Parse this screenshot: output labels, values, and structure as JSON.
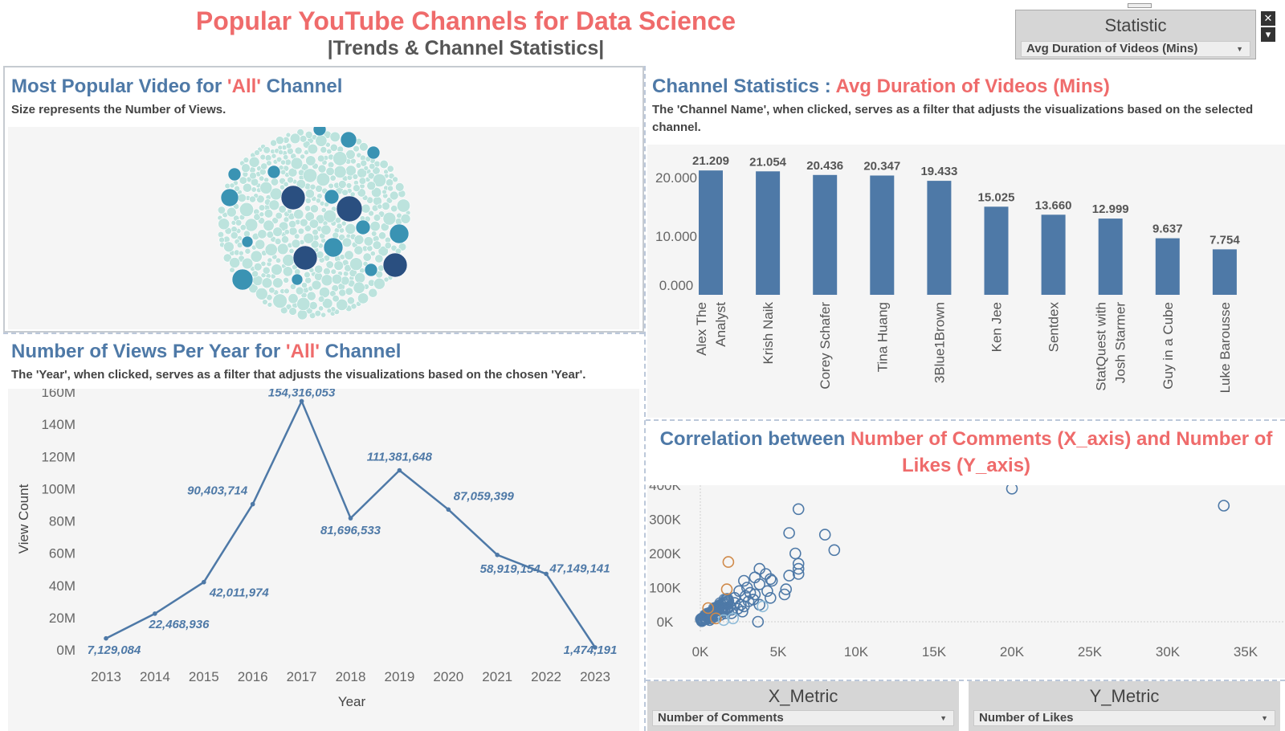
{
  "dashboard": {
    "title": "Popular YouTube Channels for Data Science",
    "subtitle": "|Trends & Channel Statistics|"
  },
  "statistic_filter": {
    "label": "Statistic",
    "selected": "Avg Duration of Videos (Mins)"
  },
  "bubble_panel": {
    "title_prefix": "Most Popular Video for ",
    "title_highlight": "'All'",
    "title_suffix": " Channel",
    "note": "Size represents the Number of Views."
  },
  "views_panel": {
    "title_prefix": "Number of Views Per Year for ",
    "title_highlight": "'All'",
    "title_suffix": " Channel",
    "note": "The 'Year', when clicked, serves as a filter that adjusts the visualizations based on the chosen 'Year'."
  },
  "channel_panel": {
    "title_prefix": "Channel Statistics : ",
    "title_highlight": "Avg Duration of Videos (Mins)",
    "note": "The 'Channel Name', when clicked, serves as a filter that adjusts the visualizations based on the selected channel."
  },
  "scatter_panel": {
    "title_prefix": "Correlation between ",
    "title_highlight_line1": "Number of Comments (X_axis) and Number of",
    "title_highlight_line2": "Likes (Y_axis)"
  },
  "x_metric": {
    "label": "X_Metric",
    "selected": "Number of Comments"
  },
  "y_metric": {
    "label": "Y_Metric",
    "selected": "Number of Likes"
  },
  "colors": {
    "title": "#ef6b6b",
    "accent": "#4e79a7",
    "bar": "#4e79a7",
    "line": "#4e79a7",
    "bubble_light": "#a8dcd4",
    "bubble_mid": "#3a93b3",
    "bubble_dark": "#2a4f80",
    "scatter_orange": "#d08a4a",
    "scatter_light": "#8ebbd8"
  },
  "chart_data": [
    {
      "id": "bubble",
      "type": "scatter",
      "title": "",
      "note": "packed bubble chart; size represents number of views"
    },
    {
      "id": "views_per_year",
      "type": "line",
      "x": [
        "2013",
        "2014",
        "2015",
        "2016",
        "2017",
        "2018",
        "2019",
        "2020",
        "2021",
        "2022",
        "2023"
      ],
      "values": [
        7129084,
        22468936,
        42011974,
        90403714,
        154316053,
        81696533,
        111381648,
        87059399,
        58919154,
        47149141,
        1474191
      ],
      "data_labels": [
        "7,129,084",
        "22,468,936",
        "42,011,974",
        "90,403,714",
        "154,316,053",
        "81,696,533",
        "111,381,648",
        "87,059,399",
        "58,919,154",
        "47,149,141",
        "1,474,191"
      ],
      "xlabel": "Year",
      "ylabel": "View Count",
      "yticks": [
        "0M",
        "20M",
        "40M",
        "60M",
        "80M",
        "100M",
        "120M",
        "140M",
        "160M"
      ],
      "ylim": [
        0,
        160000000
      ],
      "grid": false
    },
    {
      "id": "channel_stats",
      "type": "bar",
      "categories": [
        "Alex The Analyst",
        "Krish Naik",
        "Corey Schafer",
        "Tina Huang",
        "3Blue1Brown",
        "Ken Jee",
        "Sentdex",
        "StatQuest with Josh Starmer",
        "Guy in a Cube",
        "Luke Barousse"
      ],
      "category_lines": [
        [
          "Alex The",
          "Analyst"
        ],
        [
          "Krish Naik"
        ],
        [
          "Corey Schafer"
        ],
        [
          "Tina Huang"
        ],
        [
          "3Blue1Brown"
        ],
        [
          "Ken Jee"
        ],
        [
          "Sentdex"
        ],
        [
          "StatQuest with",
          "Josh Starmer"
        ],
        [
          "Guy in a Cube"
        ],
        [
          "Luke Barousse"
        ]
      ],
      "values": [
        21.209,
        21.054,
        20.436,
        20.347,
        19.433,
        15.025,
        13.66,
        12.999,
        9.637,
        7.754
      ],
      "data_labels": [
        "21.209",
        "21.054",
        "20.436",
        "20.347",
        "19.433",
        "15.025",
        "13.660",
        "12.999",
        "9.637",
        "7.754"
      ],
      "yticks": [
        "0.000",
        "10.000",
        "20.000"
      ],
      "ylim": [
        0,
        22
      ]
    },
    {
      "id": "comments_vs_likes",
      "type": "scatter",
      "xlabel": "",
      "ylabel": "",
      "xticks": [
        "0K",
        "5K",
        "10K",
        "15K",
        "20K",
        "25K",
        "30K",
        "35K"
      ],
      "yticks": [
        "0K",
        "100K",
        "200K",
        "300K",
        "400K"
      ],
      "xlim": [
        0,
        35000
      ],
      "ylim": [
        0,
        400000
      ],
      "points": [
        [
          20000,
          390000
        ],
        [
          33600,
          340000
        ],
        [
          6300,
          330000
        ],
        [
          5700,
          260000
        ],
        [
          8000,
          255000
        ],
        [
          8600,
          210000
        ],
        [
          6100,
          200000
        ],
        [
          6300,
          170000
        ],
        [
          6300,
          155000
        ],
        [
          6300,
          140000
        ],
        [
          5700,
          135000
        ],
        [
          3800,
          155000
        ],
        [
          4200,
          140000
        ],
        [
          4500,
          125000
        ],
        [
          3500,
          130000
        ],
        [
          4600,
          120000
        ],
        [
          2800,
          120000
        ],
        [
          3000,
          100000
        ],
        [
          3800,
          110000
        ],
        [
          5500,
          95000
        ],
        [
          5400,
          80000
        ],
        [
          4300,
          90000
        ],
        [
          3200,
          85000
        ],
        [
          2500,
          90000
        ],
        [
          3500,
          80000
        ],
        [
          2900,
          75000
        ],
        [
          2200,
          70000
        ],
        [
          1800,
          60000
        ],
        [
          4500,
          70000
        ],
        [
          3800,
          50000
        ],
        [
          3700,
          0
        ],
        [
          1500,
          55000
        ],
        [
          1200,
          45000
        ],
        [
          2200,
          55000
        ],
        [
          2600,
          50000
        ],
        [
          1000,
          40000
        ],
        [
          1700,
          40000
        ],
        [
          2000,
          35000
        ],
        [
          800,
          30000
        ],
        [
          1400,
          30000
        ],
        [
          600,
          25000
        ],
        [
          1100,
          22000
        ],
        [
          500,
          18000
        ],
        [
          900,
          15000
        ],
        [
          300,
          12000
        ],
        [
          700,
          10000
        ],
        [
          400,
          8000
        ],
        [
          200,
          6000
        ],
        [
          150,
          4000
        ],
        [
          100,
          2000
        ],
        [
          1300,
          20000
        ],
        [
          1600,
          25000
        ],
        [
          2400,
          38000
        ],
        [
          2700,
          30000
        ],
        [
          3100,
          60000
        ],
        [
          3400,
          65000
        ],
        [
          2000,
          25000
        ],
        [
          1900,
          45000
        ],
        [
          2800,
          45000
        ],
        [
          600,
          5000
        ]
      ],
      "orange_points": [
        [
          1800,
          175000
        ],
        [
          1700,
          95000
        ],
        [
          500,
          40000
        ],
        [
          1000,
          10000
        ]
      ],
      "light_points": [
        [
          4000,
          45000
        ],
        [
          2100,
          10000
        ],
        [
          1500,
          5000
        ]
      ]
    }
  ]
}
